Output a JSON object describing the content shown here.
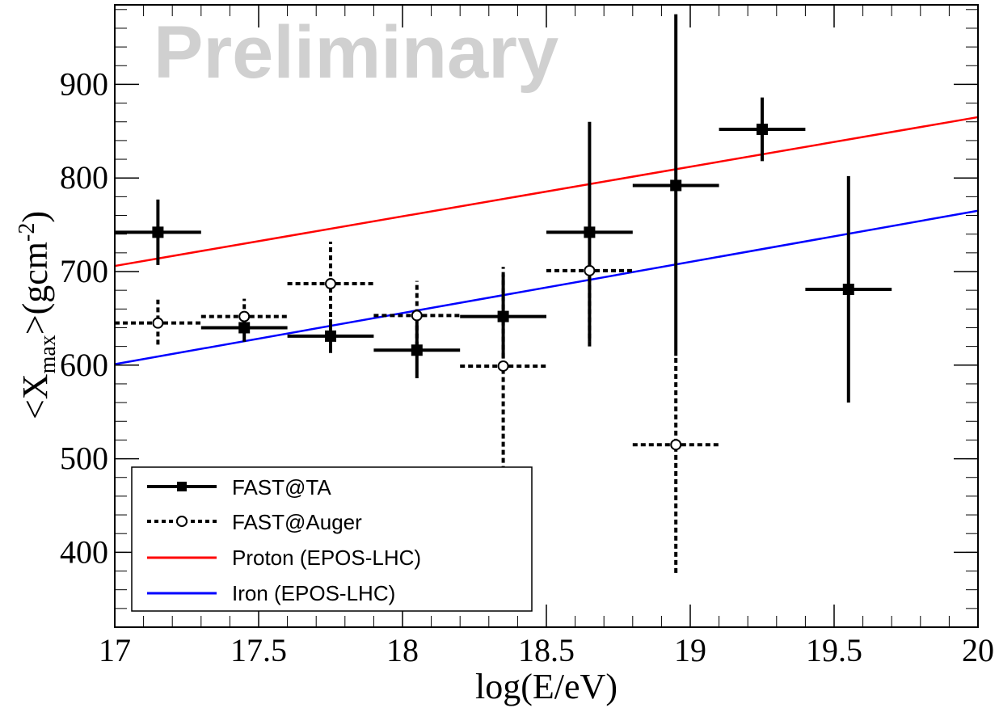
{
  "chart_data": {
    "type": "scatter",
    "title": "",
    "xlabel": "log(E/eV)",
    "ylabel": {
      "prefix": "<X",
      "sub": "max",
      "mid": ">(gcm",
      "sup": "-2",
      "suffix": ")"
    },
    "xlim": [
      17,
      20
    ],
    "ylim": [
      320,
      985
    ],
    "x_ticks": [
      "17",
      "17.5",
      "18",
      "18.5",
      "19",
      "19.5",
      "20"
    ],
    "y_ticks": [
      "400",
      "500",
      "600",
      "700",
      "800",
      "900"
    ],
    "grid": false,
    "legend_position": "bottom-left",
    "watermark": "Preliminary",
    "series": [
      {
        "name": "FAST@TA",
        "style": "solid",
        "marker": "filled-square",
        "color": "#000000",
        "points": [
          {
            "x": 17.15,
            "y": 742,
            "xerr": 0.15,
            "ylow": 707,
            "yhigh": 777
          },
          {
            "x": 17.45,
            "y": 640,
            "xerr": 0.15,
            "ylow": 625,
            "yhigh": 655
          },
          {
            "x": 17.75,
            "y": 631,
            "xerr": 0.15,
            "ylow": 613,
            "yhigh": 649
          },
          {
            "x": 18.05,
            "y": 616,
            "xerr": 0.15,
            "ylow": 586,
            "yhigh": 646
          },
          {
            "x": 18.35,
            "y": 652,
            "xerr": 0.15,
            "ylow": 607,
            "yhigh": 697
          },
          {
            "x": 18.65,
            "y": 742,
            "xerr": 0.15,
            "ylow": 625,
            "yhigh": 860
          },
          {
            "x": 18.95,
            "y": 792,
            "xerr": 0.15,
            "ylow": 610,
            "yhigh": 975
          },
          {
            "x": 19.25,
            "y": 852,
            "xerr": 0.15,
            "ylow": 818,
            "yhigh": 886
          },
          {
            "x": 19.55,
            "y": 681,
            "xerr": 0.15,
            "ylow": 560,
            "yhigh": 802
          }
        ]
      },
      {
        "name": "FAST@Auger",
        "style": "dotted",
        "marker": "open-circle",
        "color": "#000000",
        "points": [
          {
            "x": 17.15,
            "y": 645,
            "xerr": 0.15,
            "ylow": 622,
            "yhigh": 670
          },
          {
            "x": 17.45,
            "y": 652,
            "xerr": 0.15,
            "ylow": 634,
            "yhigh": 671
          },
          {
            "x": 17.75,
            "y": 687,
            "xerr": 0.15,
            "ylow": 643,
            "yhigh": 732
          },
          {
            "x": 18.05,
            "y": 653,
            "xerr": 0.15,
            "ylow": 620,
            "yhigh": 690
          },
          {
            "x": 18.35,
            "y": 599,
            "xerr": 0.15,
            "ylow": 487,
            "yhigh": 705
          },
          {
            "x": 18.65,
            "y": 701,
            "xerr": 0.15,
            "ylow": 620,
            "yhigh": 701
          },
          {
            "x": 18.95,
            "y": 515,
            "xerr": 0.15,
            "ylow": 378,
            "yhigh": 610
          }
        ]
      },
      {
        "name": "Proton (EPOS-LHC)",
        "style": "line",
        "color": "#ff0000",
        "x": [
          17,
          20
        ],
        "y": [
          706,
          865
        ]
      },
      {
        "name": "Iron (EPOS-LHC)",
        "style": "line",
        "color": "#0000ff",
        "x": [
          17,
          20
        ],
        "y": [
          601,
          765
        ]
      }
    ]
  }
}
